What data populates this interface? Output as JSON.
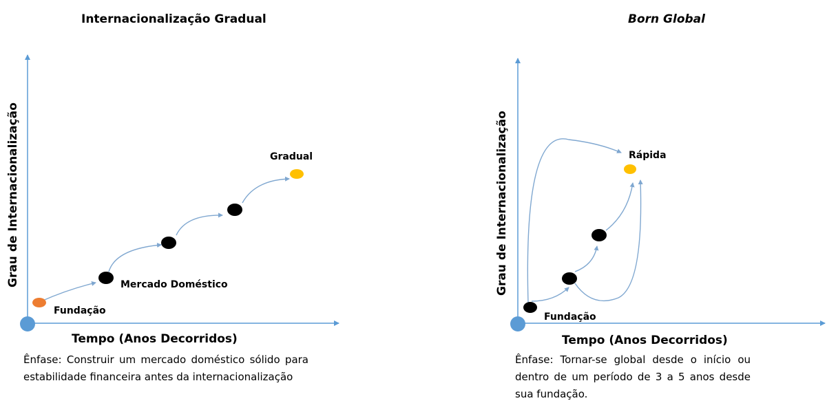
{
  "gradual": {
    "title": "Internacionalização Gradual",
    "y_axis_label": "Grau de Internacionalização",
    "x_axis_label": "Tempo (Anos Decorridos)",
    "labels": {
      "start": "Fundação",
      "domestic": "Mercado Doméstico",
      "end": "Gradual"
    },
    "emphasis": "Ênfase: Construir um mercado doméstico sólido para estabilidade financeira antes da internacionalização"
  },
  "born_global": {
    "title": "Born Global",
    "y_axis_label": "Grau de Internacionalização",
    "x_axis_label": "Tempo (Anos Decorridos)",
    "labels": {
      "start": "Fundação",
      "end": "Rápida"
    },
    "emphasis": "Ênfase: Tornar-se global desde o início ou dentro de um período de 3 a 5 anos desde sua fundação."
  },
  "colors": {
    "axis": "#5b9bd5",
    "origin": "#5b9bd5",
    "start_point": "#ed7d31",
    "milestone": "#000000",
    "end_point": "#ffc000",
    "arrow": "#7fa7d0"
  }
}
